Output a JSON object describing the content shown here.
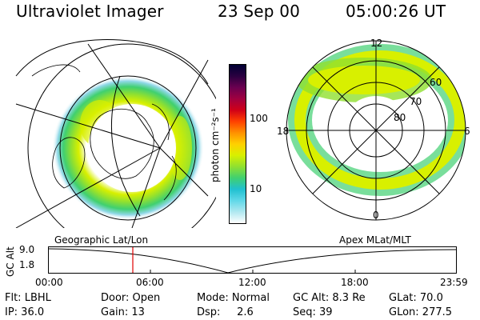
{
  "header": {
    "title": "Ultraviolet Imager",
    "date": "23 Sep 00",
    "time": "05:00:26 UT"
  },
  "colorbar": {
    "unit_label": "photon cm⁻²s⁻¹",
    "ticks": [
      "100",
      "10"
    ],
    "colors": [
      "#000033",
      "#2a0040",
      "#6a0050",
      "#a00040",
      "#d00018",
      "#ff4000",
      "#ff9000",
      "#ffd000",
      "#d8f000",
      "#90e030",
      "#40d070",
      "#20c0d0",
      "#60d8e8",
      "#b0e8f0",
      "#ffffff"
    ]
  },
  "polar_map": {
    "labels": {
      "mlt_top": "12",
      "mlt_left": "18",
      "mlt_right": "6",
      "mlt_bottom": "0"
    },
    "ring_labels": [
      "60",
      "70",
      "80"
    ]
  },
  "timeline": {
    "left_label": "Geographic Lat/Lon",
    "right_label": "Apex MLat/MLT",
    "y_axis_label": "GC Alt",
    "y_ticks": [
      "9.0",
      "1.8"
    ],
    "x_ticks": [
      "00:00",
      "06:00",
      "12:00",
      "18:00",
      "23:59"
    ],
    "marker_color": "#e00000"
  },
  "info": {
    "col1": [
      "Flt: LBHL",
      "IP: 36.0"
    ],
    "col2": [
      "Door: Open",
      "Gain: 13"
    ],
    "col3": [
      "Mode: Normal",
      "Dsp:     2.6"
    ],
    "col4": [
      "GC Alt: 8.3 Re",
      "Seq: 39"
    ],
    "col5": [
      "GLat: 70.0",
      "GLon: 277.5"
    ]
  }
}
